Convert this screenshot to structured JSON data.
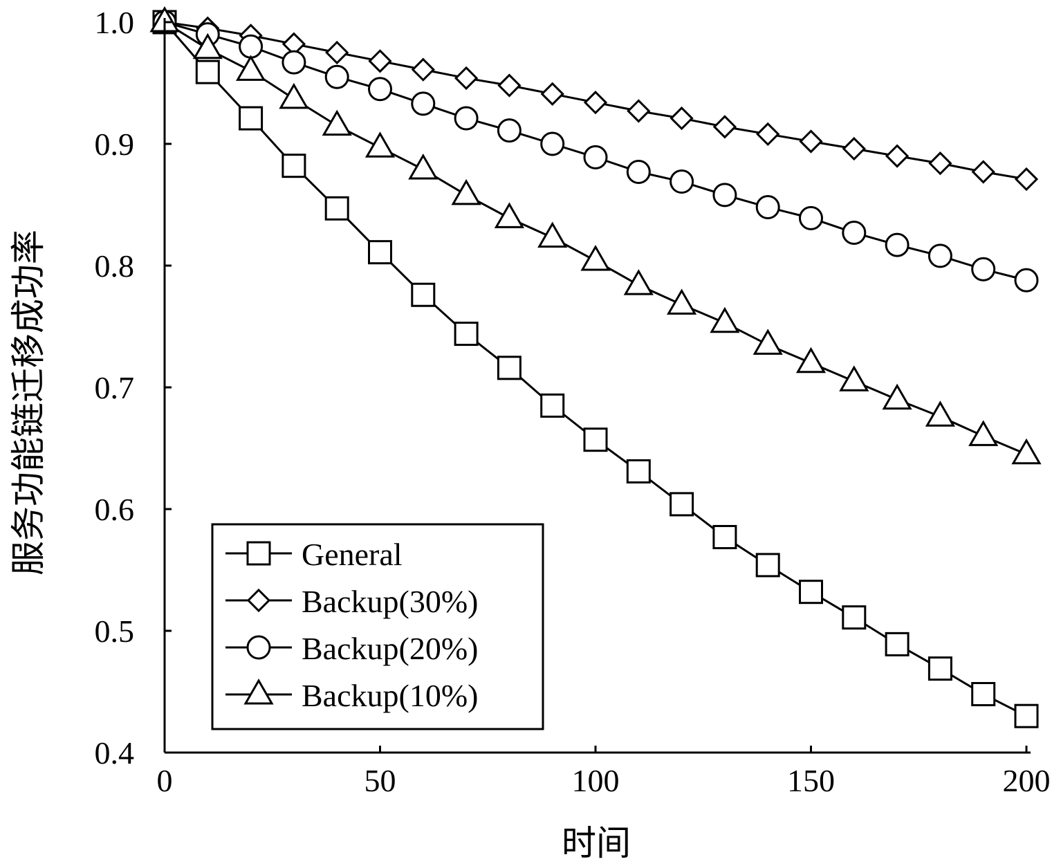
{
  "chart_data": {
    "type": "line",
    "title": "",
    "xlabel": "时间",
    "ylabel": "服务功能链迁移成功率",
    "xlim": [
      0,
      200
    ],
    "ylim": [
      0.4,
      1.0
    ],
    "xticks": [
      0,
      50,
      100,
      150,
      200
    ],
    "xtick_labels": [
      "0",
      "50",
      "100",
      "150",
      "200"
    ],
    "yticks": [
      0.4,
      0.5,
      0.6,
      0.7,
      0.8,
      0.9,
      1.0
    ],
    "ytick_labels": [
      "0.4",
      "0.5",
      "0.6",
      "0.7",
      "0.8",
      "0.9",
      "1.0"
    ],
    "grid": false,
    "legend_position": "bottom-left",
    "x": [
      0,
      10,
      20,
      30,
      40,
      50,
      60,
      70,
      80,
      90,
      100,
      110,
      120,
      130,
      140,
      150,
      160,
      170,
      180,
      190,
      200
    ],
    "series": [
      {
        "name": "General",
        "marker": "square",
        "values": [
          1.0,
          0.959,
          0.921,
          0.882,
          0.847,
          0.811,
          0.776,
          0.744,
          0.716,
          0.685,
          0.657,
          0.631,
          0.604,
          0.577,
          0.554,
          0.532,
          0.511,
          0.489,
          0.469,
          0.448,
          0.43
        ]
      },
      {
        "name": "Backup(30%)",
        "marker": "diamond",
        "values": [
          1.0,
          0.995,
          0.989,
          0.982,
          0.975,
          0.968,
          0.961,
          0.954,
          0.948,
          0.941,
          0.934,
          0.927,
          0.921,
          0.914,
          0.908,
          0.902,
          0.896,
          0.89,
          0.884,
          0.877,
          0.871
        ]
      },
      {
        "name": "Backup(20%)",
        "marker": "circle",
        "values": [
          1.0,
          0.99,
          0.98,
          0.967,
          0.955,
          0.945,
          0.933,
          0.921,
          0.911,
          0.9,
          0.889,
          0.877,
          0.869,
          0.858,
          0.848,
          0.839,
          0.827,
          0.817,
          0.808,
          0.797,
          0.788
        ]
      },
      {
        "name": "Backup(10%)",
        "marker": "triangle",
        "values": [
          1.0,
          0.978,
          0.96,
          0.937,
          0.915,
          0.897,
          0.879,
          0.858,
          0.839,
          0.823,
          0.804,
          0.784,
          0.768,
          0.753,
          0.735,
          0.72,
          0.705,
          0.69,
          0.676,
          0.66,
          0.645
        ]
      }
    ]
  }
}
